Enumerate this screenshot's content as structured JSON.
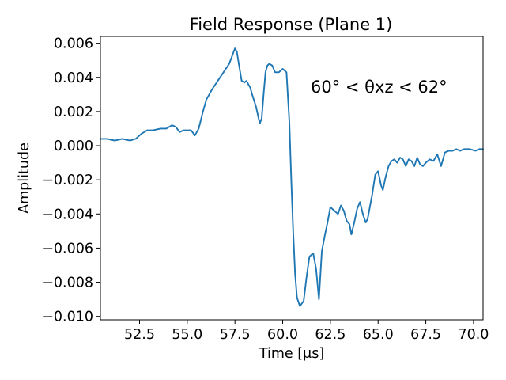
{
  "chart_data": {
    "type": "line",
    "title": "Field Response (Plane 1)",
    "xlabel": "Time [μs]",
    "ylabel": "Amplitude",
    "annotation": "60° < θxz < 62°",
    "xlim": [
      50.45,
      70.5
    ],
    "ylim": [
      -0.0102,
      0.0064
    ],
    "x_ticks": [
      52.5,
      55.0,
      57.5,
      60.0,
      62.5,
      65.0,
      67.5,
      70.0
    ],
    "x_tick_labels": [
      "52.5",
      "55.0",
      "57.5",
      "60.0",
      "62.5",
      "65.0",
      "67.5",
      "70.0"
    ],
    "y_ticks": [
      -0.01,
      -0.008,
      -0.006,
      -0.004,
      -0.002,
      0.0,
      0.002,
      0.004,
      0.006
    ],
    "y_tick_labels": [
      "−0.010",
      "−0.008",
      "−0.006",
      "−0.004",
      "−0.002",
      "0.000",
      "0.002",
      "0.004",
      "0.006"
    ],
    "grid": false,
    "series": [
      {
        "color": "#1f77b4",
        "x": [
          50.45,
          50.8,
          51.2,
          51.6,
          52.0,
          52.3,
          52.6,
          52.9,
          53.2,
          53.6,
          53.9,
          54.2,
          54.4,
          54.6,
          54.8,
          55.0,
          55.2,
          55.4,
          55.6,
          55.8,
          56.0,
          56.3,
          56.6,
          56.9,
          57.2,
          57.4,
          57.5,
          57.6,
          57.7,
          57.85,
          58.0,
          58.1,
          58.2,
          58.3,
          58.4,
          58.6,
          58.8,
          58.9,
          59.0,
          59.1,
          59.2,
          59.3,
          59.45,
          59.6,
          59.8,
          60.0,
          60.2,
          60.35,
          60.45,
          60.55,
          60.65,
          60.75,
          60.9,
          61.1,
          61.25,
          61.4,
          61.6,
          61.75,
          61.9,
          62.05,
          62.2,
          62.35,
          62.5,
          62.7,
          62.9,
          63.05,
          63.2,
          63.35,
          63.5,
          63.6,
          63.75,
          63.9,
          64.05,
          64.2,
          64.35,
          64.45,
          64.55,
          64.7,
          64.85,
          65.0,
          65.15,
          65.25,
          65.4,
          65.55,
          65.7,
          65.85,
          66.0,
          66.15,
          66.3,
          66.45,
          66.6,
          66.75,
          66.9,
          67.05,
          67.2,
          67.35,
          67.5,
          67.7,
          67.9,
          68.1,
          68.3,
          68.5,
          68.7,
          68.9,
          69.1,
          69.3,
          69.5,
          69.8,
          70.1,
          70.3,
          70.5
        ],
        "y": [
          0.0004,
          0.0004,
          0.0003,
          0.0004,
          0.0003,
          0.0004,
          0.0007,
          0.0009,
          0.0009,
          0.001,
          0.001,
          0.0012,
          0.0011,
          0.0008,
          0.0009,
          0.0009,
          0.0009,
          0.0006,
          0.001,
          0.0019,
          0.0027,
          0.0033,
          0.0038,
          0.0043,
          0.0048,
          0.0054,
          0.0057,
          0.0055,
          0.0048,
          0.0038,
          0.0037,
          0.0038,
          0.0036,
          0.0034,
          0.003,
          0.0023,
          0.0013,
          0.0016,
          0.003,
          0.0043,
          0.0047,
          0.0048,
          0.0047,
          0.0043,
          0.0043,
          0.0045,
          0.0043,
          0.0014,
          -0.002,
          -0.005,
          -0.0075,
          -0.0089,
          -0.0094,
          -0.0091,
          -0.0077,
          -0.0065,
          -0.0063,
          -0.0072,
          -0.009,
          -0.0062,
          -0.0053,
          -0.0045,
          -0.0036,
          -0.0038,
          -0.004,
          -0.0035,
          -0.0038,
          -0.0044,
          -0.0046,
          -0.0052,
          -0.0045,
          -0.0037,
          -0.0033,
          -0.004,
          -0.0045,
          -0.0043,
          -0.0037,
          -0.0028,
          -0.0017,
          -0.0015,
          -0.0023,
          -0.0026,
          -0.0018,
          -0.0012,
          -0.0009,
          -0.0008,
          -0.001,
          -0.0007,
          -0.0008,
          -0.0012,
          -0.0008,
          -0.0009,
          -0.0012,
          -0.0007,
          -0.0011,
          -0.0012,
          -0.001,
          -0.0008,
          -0.0009,
          -0.0005,
          -0.0012,
          -0.0004,
          -0.0003,
          -0.0003,
          -0.0002,
          -0.0003,
          -0.0002,
          -0.0002,
          -0.0003,
          -0.0002,
          -0.0002
        ]
      }
    ]
  }
}
